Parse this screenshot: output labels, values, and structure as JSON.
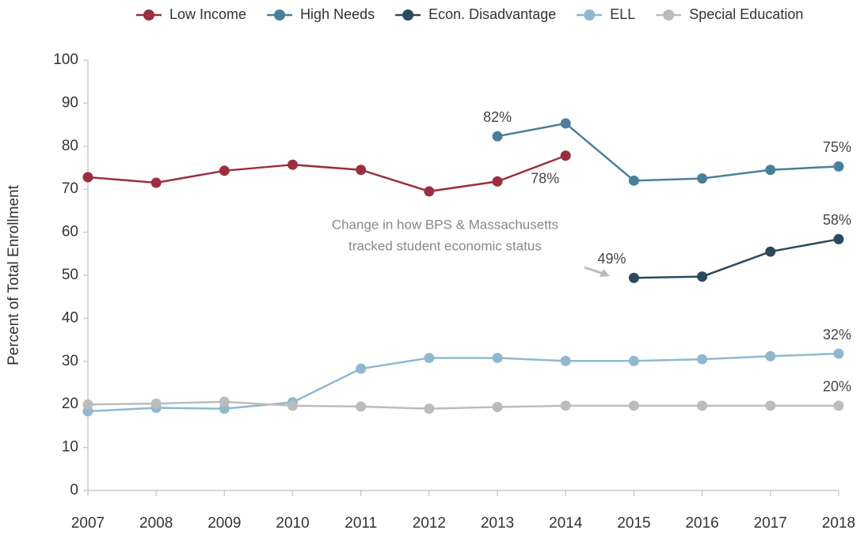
{
  "chart_data": {
    "type": "line",
    "ylabel": "Percent of Total Enrollment",
    "categories": [
      "2007",
      "2008",
      "2009",
      "2010",
      "2011",
      "2012",
      "2013",
      "2014",
      "2015",
      "2016",
      "2017",
      "2018"
    ],
    "series": [
      {
        "name": "Low Income",
        "color": "#9b2f3f",
        "values": [
          72.8,
          71.5,
          74.3,
          75.7,
          74.5,
          69.5,
          71.8,
          77.8,
          null,
          null,
          null,
          null
        ],
        "value_labels": [
          null,
          null,
          null,
          null,
          null,
          null,
          null,
          "78%",
          null,
          null,
          null,
          null
        ]
      },
      {
        "name": "High Needs",
        "color": "#4a7f9c",
        "values": [
          null,
          null,
          null,
          null,
          null,
          null,
          82.3,
          85.3,
          72.0,
          72.5,
          74.5,
          75.3
        ],
        "value_labels": [
          null,
          null,
          null,
          null,
          null,
          null,
          "82%",
          null,
          null,
          null,
          null,
          "75%"
        ]
      },
      {
        "name": "Econ. Disadvantage",
        "color": "#2b4a5e",
        "values": [
          null,
          null,
          null,
          null,
          null,
          null,
          null,
          null,
          49.4,
          49.7,
          55.5,
          58.4
        ],
        "value_labels": [
          null,
          null,
          null,
          null,
          null,
          null,
          null,
          null,
          "49%",
          null,
          null,
          "58%"
        ]
      },
      {
        "name": "ELL",
        "color": "#8fb8cf",
        "values": [
          18.4,
          19.2,
          19.0,
          20.5,
          28.3,
          30.8,
          30.8,
          30.1,
          30.1,
          30.5,
          31.2,
          31.8
        ],
        "value_labels": [
          null,
          null,
          null,
          null,
          null,
          null,
          null,
          null,
          null,
          null,
          null,
          "32%"
        ]
      },
      {
        "name": "Special Education",
        "color": "#bcbcbc",
        "values": [
          20.0,
          20.2,
          20.6,
          19.7,
          19.5,
          19.0,
          19.4,
          19.7,
          19.7,
          19.7,
          19.7,
          19.7
        ],
        "value_labels": [
          null,
          null,
          null,
          null,
          null,
          null,
          null,
          null,
          null,
          null,
          null,
          "20%"
        ]
      }
    ],
    "annotation": [
      "Change in how BPS & Massachusetts",
      "tracked student economic status"
    ],
    "ylim": [
      0,
      100
    ],
    "yticks": [
      0,
      10,
      20,
      30,
      40,
      50,
      60,
      70,
      80,
      90,
      100
    ],
    "grid": false,
    "legend": "top"
  }
}
